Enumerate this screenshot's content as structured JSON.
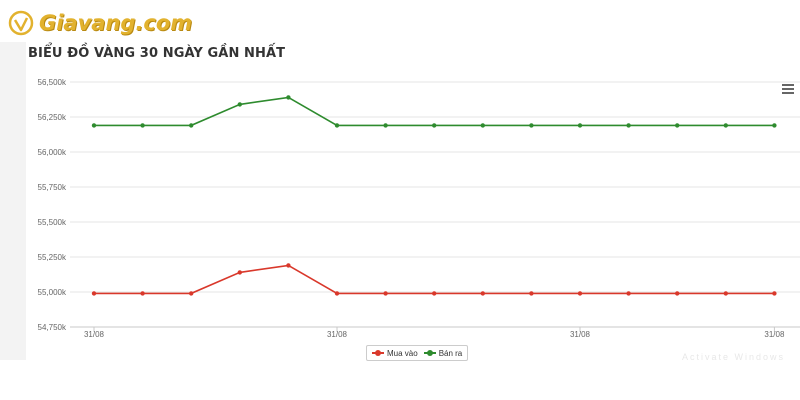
{
  "site": {
    "logo_text": "Giavang.com",
    "logo_color": "#e2b22e"
  },
  "watermark_text": "Activate Windows",
  "chart_data": {
    "type": "line",
    "title": "BIỂU ĐỒ VÀNG 30 NGÀY GẦN NHẤT",
    "xlabel": "",
    "ylabel": "",
    "ylim": [
      54750,
      56500
    ],
    "yticks": [
      {
        "value": 54750,
        "label": "54,750k"
      },
      {
        "value": 55000,
        "label": "55,000k"
      },
      {
        "value": 55250,
        "label": "55,250k"
      },
      {
        "value": 55500,
        "label": "55,500k"
      },
      {
        "value": 55750,
        "label": "55,750k"
      },
      {
        "value": 56000,
        "label": "56,000k"
      },
      {
        "value": 56250,
        "label": "56,250k"
      },
      {
        "value": 56500,
        "label": "56,500k"
      }
    ],
    "xticks": [
      {
        "index": 0,
        "label": "31/08"
      },
      {
        "index": 5,
        "label": "31/08"
      },
      {
        "index": 10,
        "label": "31/08"
      },
      {
        "index": 14,
        "label": "31/08"
      }
    ],
    "grid": true,
    "legend_position": "bottom-center",
    "series": [
      {
        "name": "Mua vào",
        "color": "#d9382b",
        "values": [
          54990,
          54990,
          54990,
          55140,
          55190,
          54990,
          54990,
          54990,
          54990,
          54990,
          54990,
          54990,
          54990,
          54990,
          54990
        ]
      },
      {
        "name": "Bán ra",
        "color": "#2e8b2e",
        "values": [
          56190,
          56190,
          56190,
          56340,
          56390,
          56190,
          56190,
          56190,
          56190,
          56190,
          56190,
          56190,
          56190,
          56190,
          56190
        ]
      }
    ]
  }
}
